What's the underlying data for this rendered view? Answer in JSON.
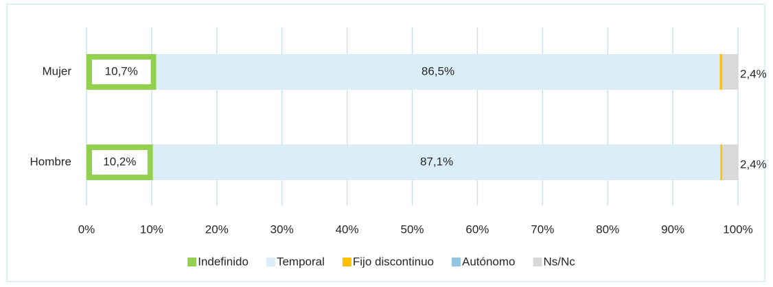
{
  "chart_data": {
    "type": "stacked_barh",
    "categories": [
      "Mujer",
      "Hombre"
    ],
    "series": [
      {
        "name": "Indefinido",
        "color": "#92d050",
        "values": [
          10.7,
          10.2
        ],
        "value_labels": [
          "10,7%",
          "10,2%"
        ]
      },
      {
        "name": "Temporal",
        "color": "#dbeef7",
        "values": [
          86.5,
          87.1
        ],
        "value_labels": [
          "86,5%",
          "87,1%"
        ]
      },
      {
        "name": "Fijo discontinuo",
        "color": "#ffc000",
        "values": [
          0.4,
          0.3
        ],
        "value_labels": [
          null,
          null
        ]
      },
      {
        "name": "Autónomo",
        "color": "#92c6e0",
        "values": [
          0,
          0
        ],
        "value_labels": [
          null,
          null
        ]
      },
      {
        "name": "Ns/Nc",
        "color": "#d9d9d9",
        "values": [
          2.4,
          2.4
        ],
        "value_labels": [
          "2,4%",
          "2,4%"
        ]
      }
    ],
    "xlim": [
      0,
      100
    ],
    "xticks": [
      {
        "value": 0,
        "label": "0%"
      },
      {
        "value": 10,
        "label": "10%"
      },
      {
        "value": 20,
        "label": "20%"
      },
      {
        "value": 30,
        "label": "30%"
      },
      {
        "value": 40,
        "label": "40%"
      },
      {
        "value": 50,
        "label": "50%"
      },
      {
        "value": 60,
        "label": "60%"
      },
      {
        "value": 70,
        "label": "70%"
      },
      {
        "value": 80,
        "label": "80%"
      },
      {
        "value": 90,
        "label": "90%"
      },
      {
        "value": 100,
        "label": "100%"
      }
    ],
    "grid": true,
    "legend": "bottom"
  }
}
